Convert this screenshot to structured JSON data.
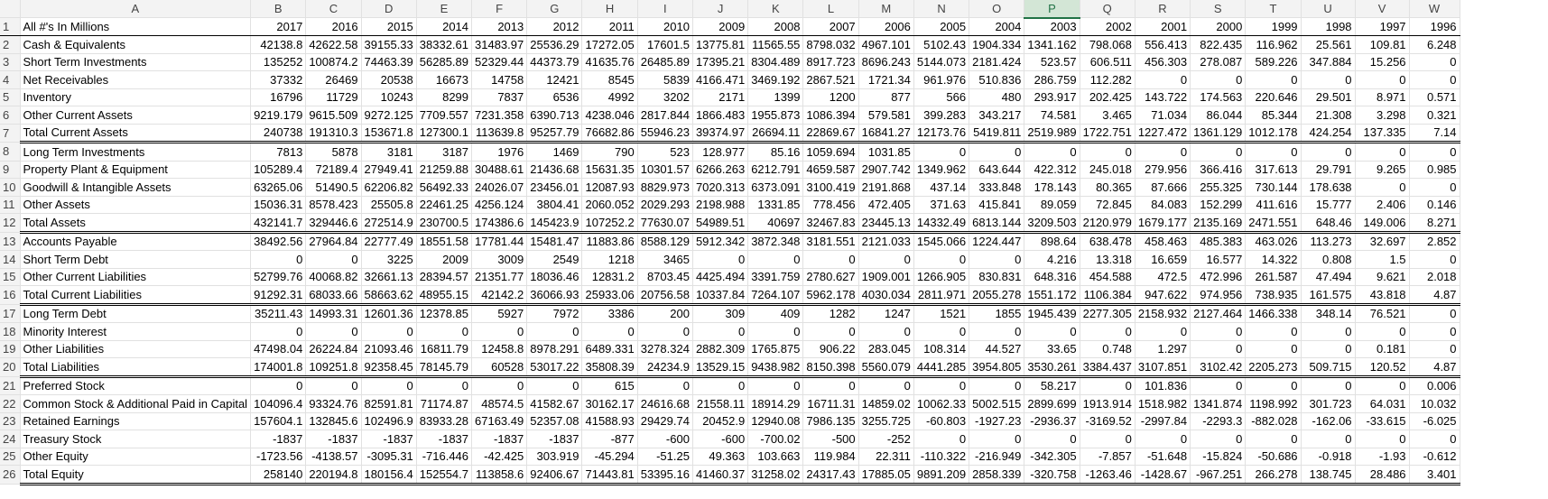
{
  "sheet": {
    "columns": [
      "A",
      "B",
      "C",
      "D",
      "E",
      "F",
      "G",
      "H",
      "I",
      "J",
      "K",
      "L",
      "M",
      "N",
      "O",
      "P",
      "Q",
      "R",
      "S",
      "T",
      "U",
      "V",
      "W"
    ],
    "selected_column": "P",
    "rows": [
      {
        "n": "1",
        "type": "hdr",
        "cells": [
          "All #'s In Millions",
          "2017",
          "2016",
          "2015",
          "2014",
          "2013",
          "2012",
          "2011",
          "2010",
          "2009",
          "2008",
          "2007",
          "2006",
          "2005",
          "2004",
          "2003",
          "2002",
          "2001",
          "2000",
          "1999",
          "1998",
          "1997",
          "1996"
        ]
      },
      {
        "n": "2",
        "type": "row",
        "cells": [
          "Cash & Equivalents",
          "42138.8",
          "42622.58",
          "39155.33",
          "38332.61",
          "31483.97",
          "25536.29",
          "17272.05",
          "17601.5",
          "13775.81",
          "11565.55",
          "8798.032",
          "4967.101",
          "5102.43",
          "1904.334",
          "1341.162",
          "798.068",
          "556.413",
          "822.435",
          "116.962",
          "25.561",
          "109.81",
          "6.248"
        ]
      },
      {
        "n": "3",
        "type": "row",
        "cells": [
          "Short Term Investments",
          "135252",
          "100874.2",
          "74463.39",
          "56285.89",
          "52329.44",
          "44373.79",
          "41635.76",
          "26485.89",
          "17395.21",
          "8304.489",
          "8917.723",
          "8696.243",
          "5144.073",
          "2181.424",
          "523.57",
          "606.511",
          "456.303",
          "278.087",
          "589.226",
          "347.884",
          "15.256",
          "0"
        ]
      },
      {
        "n": "4",
        "type": "row",
        "cells": [
          "Net Receivables",
          "37332",
          "26469",
          "20538",
          "16673",
          "14758",
          "12421",
          "8545",
          "5839",
          "4166.471",
          "3469.192",
          "2867.521",
          "1721.34",
          "961.976",
          "510.836",
          "286.759",
          "112.282",
          "0",
          "0",
          "0",
          "0",
          "0",
          "0"
        ]
      },
      {
        "n": "5",
        "type": "row",
        "cells": [
          "Inventory",
          "16796",
          "11729",
          "10243",
          "8299",
          "7837",
          "6536",
          "4992",
          "3202",
          "2171",
          "1399",
          "1200",
          "877",
          "566",
          "480",
          "293.917",
          "202.425",
          "143.722",
          "174.563",
          "220.646",
          "29.501",
          "8.971",
          "0.571"
        ]
      },
      {
        "n": "6",
        "type": "row",
        "cells": [
          "Other Current Assets",
          "9219.179",
          "9615.509",
          "9272.125",
          "7709.557",
          "7231.358",
          "6390.713",
          "4238.046",
          "2817.844",
          "1866.483",
          "1955.873",
          "1086.394",
          "579.581",
          "399.283",
          "343.217",
          "74.581",
          "3.465",
          "71.034",
          "86.044",
          "85.344",
          "21.308",
          "3.298",
          "0.321"
        ]
      },
      {
        "n": "7",
        "type": "tot",
        "cells": [
          "Total Current Assets",
          "240738",
          "191310.3",
          "153671.8",
          "127300.1",
          "113639.8",
          "95257.79",
          "76682.86",
          "55946.23",
          "39374.97",
          "26694.11",
          "22869.67",
          "16841.27",
          "12173.76",
          "5419.811",
          "2519.989",
          "1722.751",
          "1227.472",
          "1361.129",
          "1012.178",
          "424.254",
          "137.335",
          "7.14"
        ]
      },
      {
        "n": "8",
        "type": "row",
        "cells": [
          "Long Term Investments",
          "7813",
          "5878",
          "3181",
          "3187",
          "1976",
          "1469",
          "790",
          "523",
          "128.977",
          "85.16",
          "1059.694",
          "1031.85",
          "0",
          "0",
          "0",
          "0",
          "0",
          "0",
          "0",
          "0",
          "0",
          "0"
        ]
      },
      {
        "n": "9",
        "type": "row",
        "cells": [
          "Property Plant & Equipment",
          "105289.4",
          "72189.4",
          "27949.41",
          "21259.88",
          "30488.61",
          "21436.68",
          "15631.35",
          "10301.57",
          "6266.263",
          "6212.791",
          "4659.587",
          "2907.742",
          "1349.962",
          "643.644",
          "422.312",
          "245.018",
          "279.956",
          "366.416",
          "317.613",
          "29.791",
          "9.265",
          "0.985"
        ]
      },
      {
        "n": "10",
        "type": "row",
        "cells": [
          "Goodwill & Intangible Assets",
          "63265.06",
          "51490.5",
          "62206.82",
          "56492.33",
          "24026.07",
          "23456.01",
          "12087.93",
          "8829.973",
          "7020.313",
          "6373.091",
          "3100.419",
          "2191.868",
          "437.14",
          "333.848",
          "178.143",
          "80.365",
          "87.666",
          "255.325",
          "730.144",
          "178.638",
          "0",
          "0"
        ]
      },
      {
        "n": "11",
        "type": "row",
        "cells": [
          "Other Assets",
          "15036.31",
          "8578.423",
          "25505.8",
          "22461.25",
          "4256.124",
          "3804.41",
          "2060.052",
          "2029.293",
          "2198.988",
          "1331.85",
          "778.456",
          "472.405",
          "371.63",
          "415.841",
          "89.059",
          "72.845",
          "84.083",
          "152.299",
          "411.616",
          "15.777",
          "2.406",
          "0.146"
        ]
      },
      {
        "n": "12",
        "type": "tot",
        "cells": [
          "Total Assets",
          "432141.7",
          "329446.6",
          "272514.9",
          "230700.5",
          "174386.6",
          "145423.9",
          "107252.2",
          "77630.07",
          "54989.51",
          "40697",
          "32467.83",
          "23445.13",
          "14332.49",
          "6813.144",
          "3209.503",
          "2120.979",
          "1679.177",
          "2135.169",
          "2471.551",
          "648.46",
          "149.006",
          "8.271"
        ]
      },
      {
        "n": "13",
        "type": "row",
        "cells": [
          "Accounts Payable",
          "38492.56",
          "27964.84",
          "22777.49",
          "18551.58",
          "17781.44",
          "15481.47",
          "11883.86",
          "8588.129",
          "5912.342",
          "3872.348",
          "3181.551",
          "2121.033",
          "1545.066",
          "1224.447",
          "898.64",
          "638.478",
          "458.463",
          "485.383",
          "463.026",
          "113.273",
          "32.697",
          "2.852"
        ]
      },
      {
        "n": "14",
        "type": "row",
        "cells": [
          "Short Term Debt",
          "0",
          "0",
          "3225",
          "2009",
          "3009",
          "2549",
          "1218",
          "3465",
          "0",
          "0",
          "0",
          "0",
          "0",
          "0",
          "4.216",
          "13.318",
          "16.659",
          "16.577",
          "14.322",
          "0.808",
          "1.5",
          "0"
        ]
      },
      {
        "n": "15",
        "type": "row",
        "cells": [
          "Other Current Liabilities",
          "52799.76",
          "40068.82",
          "32661.13",
          "28394.57",
          "21351.77",
          "18036.46",
          "12831.2",
          "8703.45",
          "4425.494",
          "3391.759",
          "2780.627",
          "1909.001",
          "1266.905",
          "830.831",
          "648.316",
          "454.588",
          "472.5",
          "472.996",
          "261.587",
          "47.494",
          "9.621",
          "2.018"
        ]
      },
      {
        "n": "16",
        "type": "tot",
        "cells": [
          "Total Current Liabilities",
          "91292.31",
          "68033.66",
          "58663.62",
          "48955.15",
          "42142.2",
          "36066.93",
          "25933.06",
          "20756.58",
          "10337.84",
          "7264.107",
          "5962.178",
          "4030.034",
          "2811.971",
          "2055.278",
          "1551.172",
          "1106.384",
          "947.622",
          "974.956",
          "738.935",
          "161.575",
          "43.818",
          "4.87"
        ]
      },
      {
        "n": "17",
        "type": "row",
        "cells": [
          "Long Term Debt",
          "35211.43",
          "14993.31",
          "12601.36",
          "12378.85",
          "5927",
          "7972",
          "3386",
          "200",
          "309",
          "409",
          "1282",
          "1247",
          "1521",
          "1855",
          "1945.439",
          "2277.305",
          "2158.932",
          "2127.464",
          "1466.338",
          "348.14",
          "76.521",
          "0"
        ]
      },
      {
        "n": "18",
        "type": "row",
        "cells": [
          "Minority Interest",
          "0",
          "0",
          "0",
          "0",
          "0",
          "0",
          "0",
          "0",
          "0",
          "0",
          "0",
          "0",
          "0",
          "0",
          "0",
          "0",
          "0",
          "0",
          "0",
          "0",
          "0",
          "0"
        ]
      },
      {
        "n": "19",
        "type": "row",
        "cells": [
          "Other Liabilities",
          "47498.04",
          "26224.84",
          "21093.46",
          "16811.79",
          "12458.8",
          "8978.291",
          "6489.331",
          "3278.324",
          "2882.309",
          "1765.875",
          "906.22",
          "283.045",
          "108.314",
          "44.527",
          "33.65",
          "0.748",
          "1.297",
          "0",
          "0",
          "0",
          "0.181",
          "0"
        ]
      },
      {
        "n": "20",
        "type": "tot",
        "cells": [
          "Total Liabilities",
          "174001.8",
          "109251.8",
          "92358.45",
          "78145.79",
          "60528",
          "53017.22",
          "35808.39",
          "24234.9",
          "13529.15",
          "9438.982",
          "8150.398",
          "5560.079",
          "4441.285",
          "3954.805",
          "3530.261",
          "3384.437",
          "3107.851",
          "3102.42",
          "2205.273",
          "509.715",
          "120.52",
          "4.87"
        ]
      },
      {
        "n": "21",
        "type": "row",
        "cells": [
          "Preferred Stock",
          "0",
          "0",
          "0",
          "0",
          "0",
          "0",
          "615",
          "0",
          "0",
          "0",
          "0",
          "0",
          "0",
          "0",
          "58.217",
          "0",
          "101.836",
          "0",
          "0",
          "0",
          "0",
          "0.006"
        ]
      },
      {
        "n": "22",
        "type": "row",
        "cells": [
          "Common Stock & Additional Paid in Capital",
          "104096.4",
          "93324.76",
          "82591.81",
          "71174.87",
          "48574.5",
          "41582.67",
          "30162.17",
          "24616.68",
          "21558.11",
          "18914.29",
          "16711.31",
          "14859.02",
          "10062.33",
          "5002.515",
          "2899.699",
          "1913.914",
          "1518.982",
          "1341.874",
          "1198.992",
          "301.723",
          "64.031",
          "10.032"
        ]
      },
      {
        "n": "23",
        "type": "row",
        "cells": [
          "Retained Earnings",
          "157604.1",
          "132845.6",
          "102496.9",
          "83933.28",
          "67163.49",
          "52357.08",
          "41588.93",
          "29429.74",
          "20452.9",
          "12940.08",
          "7986.135",
          "3255.725",
          "-60.803",
          "-1927.23",
          "-2936.37",
          "-3169.52",
          "-2997.84",
          "-2293.3",
          "-882.028",
          "-162.06",
          "-33.615",
          "-6.025"
        ]
      },
      {
        "n": "24",
        "type": "row",
        "cells": [
          "Treasury Stock",
          "-1837",
          "-1837",
          "-1837",
          "-1837",
          "-1837",
          "-1837",
          "-877",
          "-600",
          "-600",
          "-700.02",
          "-500",
          "-252",
          "0",
          "0",
          "0",
          "0",
          "0",
          "0",
          "0",
          "0",
          "0",
          "0"
        ]
      },
      {
        "n": "25",
        "type": "row",
        "cells": [
          "Other Equity",
          "-1723.56",
          "-4138.57",
          "-3095.31",
          "-716.446",
          "-42.425",
          "303.919",
          "-45.294",
          "-51.25",
          "49.363",
          "103.663",
          "119.984",
          "22.311",
          "-110.322",
          "-216.949",
          "-342.305",
          "-7.857",
          "-51.648",
          "-15.824",
          "-50.686",
          "-0.918",
          "-1.93",
          "-0.612"
        ]
      },
      {
        "n": "26",
        "type": "tot",
        "cells": [
          "Total Equity",
          "258140",
          "220194.8",
          "180156.4",
          "152554.7",
          "113858.6",
          "92406.67",
          "71443.81",
          "53395.16",
          "41460.37",
          "31258.02",
          "24317.43",
          "17885.05",
          "9891.209",
          "2858.339",
          "-320.758",
          "-1263.46",
          "-1428.67",
          "-967.251",
          "266.278",
          "138.745",
          "28.486",
          "3.401"
        ]
      }
    ]
  }
}
